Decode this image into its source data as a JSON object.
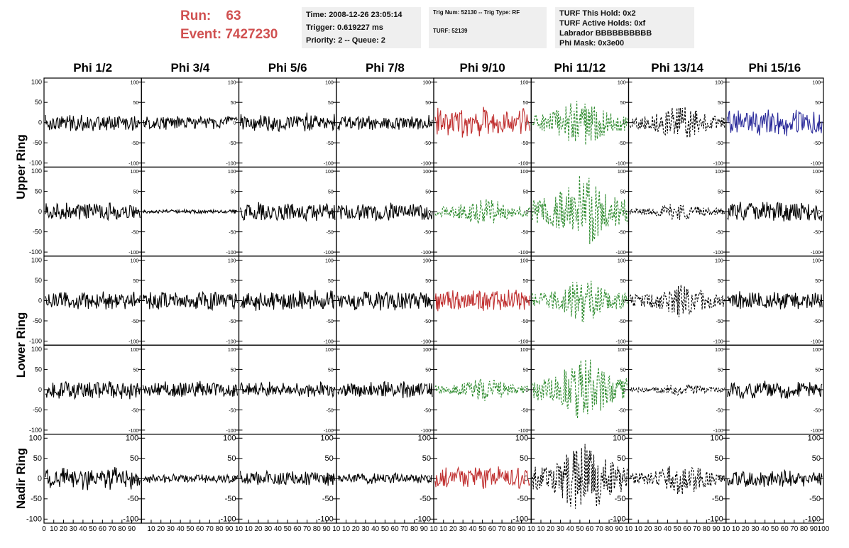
{
  "header": {
    "run_label": "Run:",
    "run_value": "63",
    "event_label": "Event:",
    "event_value": "7427230",
    "box1": [
      "Time: 2008-12-26 23:05:14",
      "Trigger: 0.619227 ms",
      "Priority: 2 -- Queue: 2"
    ],
    "box2": [
      "Trig Num: 52130 -- Trig Type: RF",
      "TURF: 52139"
    ],
    "box3": [
      "TURF This Hold: 0x2",
      "TURF Active Holds: 0xf",
      "Labrador BBBBBBBBBB",
      "Phi Mask: 0x3e00"
    ]
  },
  "colors": {
    "run_text": "#d05050",
    "red": "#c03030",
    "green": "#2e8b2e",
    "blue": "#2a2a9a",
    "black": "#000000",
    "box_bg": "#efefef"
  },
  "chart_data": {
    "type": "line",
    "columns": [
      "Phi 1/2",
      "Phi 3/4",
      "Phi 5/6",
      "Phi 7/8",
      "Phi 9/10",
      "Phi 11/12",
      "Phi 13/14",
      "Phi 15/16"
    ],
    "rows": [
      "Upper Ring",
      "",
      "Lower Ring",
      "",
      "Nadir Ring"
    ],
    "row_groups": [
      {
        "label": "Upper Ring",
        "rows": [
          0,
          1
        ]
      },
      {
        "label": "Lower Ring",
        "rows": [
          2,
          3
        ]
      },
      {
        "label": "Nadir Ring",
        "rows": [
          4
        ]
      }
    ],
    "ylim": [
      -110,
      110
    ],
    "yticks": [
      -100,
      -50,
      0,
      50,
      100
    ],
    "xlim": [
      0,
      100
    ],
    "xtick_labels": [
      "0",
      "10",
      "20",
      "30",
      "40",
      "50",
      "60",
      "70",
      "80",
      "90",
      "100"
    ],
    "xtick_labels_mid": [
      "10",
      "20",
      "30",
      "40",
      "50",
      "60",
      "70",
      "80",
      "90",
      "10"
    ],
    "panels": [
      [
        {
          "color": "black",
          "style": "solid",
          "amp": 22
        },
        {
          "color": "black",
          "style": "solid",
          "amp": 18
        },
        {
          "color": "black",
          "style": "solid",
          "amp": 25
        },
        {
          "color": "black",
          "style": "solid",
          "amp": 20
        },
        {
          "color": "red",
          "style": "solid",
          "amp": 40
        },
        {
          "color": "green",
          "style": "dashed",
          "amp": 60
        },
        {
          "color": "black",
          "style": "dashed",
          "amp": 42
        },
        {
          "color": "blue",
          "style": "solid",
          "amp": 35
        }
      ],
      [
        {
          "color": "black",
          "style": "solid",
          "amp": 24
        },
        {
          "color": "black",
          "style": "solid",
          "amp": 5
        },
        {
          "color": "black",
          "style": "solid",
          "amp": 25
        },
        {
          "color": "black",
          "style": "solid",
          "amp": 24
        },
        {
          "color": "green",
          "style": "dashed",
          "amp": 35
        },
        {
          "color": "green",
          "style": "dashed",
          "amp": 90
        },
        {
          "color": "black",
          "style": "dashed",
          "amp": 22
        },
        {
          "color": "black",
          "style": "solid",
          "amp": 30
        }
      ],
      [
        {
          "color": "black",
          "style": "solid",
          "amp": 25
        },
        {
          "color": "black",
          "style": "solid",
          "amp": 25
        },
        {
          "color": "black",
          "style": "solid",
          "amp": 28
        },
        {
          "color": "black",
          "style": "solid",
          "amp": 25
        },
        {
          "color": "red",
          "style": "solid",
          "amp": 28
        },
        {
          "color": "green",
          "style": "dashed",
          "amp": 55
        },
        {
          "color": "black",
          "style": "dashed",
          "amp": 42
        },
        {
          "color": "black",
          "style": "solid",
          "amp": 25
        }
      ],
      [
        {
          "color": "black",
          "style": "solid",
          "amp": 25
        },
        {
          "color": "black",
          "style": "solid",
          "amp": 22
        },
        {
          "color": "black",
          "style": "solid",
          "amp": 20
        },
        {
          "color": "black",
          "style": "solid",
          "amp": 22
        },
        {
          "color": "green",
          "style": "dashed",
          "amp": 28
        },
        {
          "color": "green",
          "style": "dashed",
          "amp": 80
        },
        {
          "color": "black",
          "style": "dashed",
          "amp": 15
        },
        {
          "color": "black",
          "style": "solid",
          "amp": 25
        }
      ],
      [
        {
          "color": "black",
          "style": "solid",
          "amp": 30
        },
        {
          "color": "black",
          "style": "solid",
          "amp": 12
        },
        {
          "color": "black",
          "style": "solid",
          "amp": 20
        },
        {
          "color": "black",
          "style": "solid",
          "amp": 15
        },
        {
          "color": "red",
          "style": "solid",
          "amp": 32
        },
        {
          "color": "black",
          "style": "dashed",
          "amp": 90
        },
        {
          "color": "black",
          "style": "dashed",
          "amp": 40
        },
        {
          "color": "black",
          "style": "solid",
          "amp": 22
        }
      ]
    ]
  }
}
